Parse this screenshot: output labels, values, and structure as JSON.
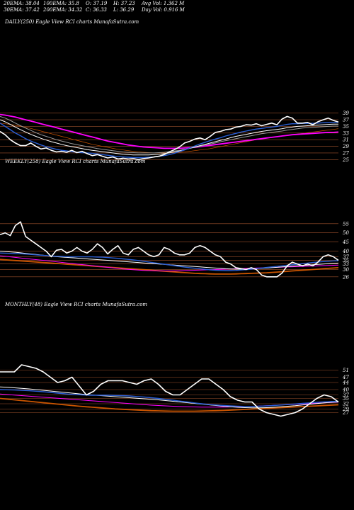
{
  "header": {
    "row1": [
      "20EMA: 38.04",
      "100EMA: 35.8",
      "O: 37.19",
      "H: 37.23",
      "Avg Vol: 1.362  M"
    ],
    "row2": [
      "30EMA: 37.42",
      "200EMA: 34.32",
      "C: 36.33",
      "L: 36.29",
      "Day Vol: 0.916  M"
    ]
  },
  "chart_data": [
    {
      "type": "line",
      "title": "DAILY(250) Eagle   View  RCI charts MunafaSutra.com",
      "ylim": [
        24,
        40
      ],
      "yticks": [
        39,
        37,
        35,
        33,
        31,
        29,
        27,
        25
      ],
      "series": [
        {
          "color": "#ffffff",
          "values": [
            33.5,
            32.5,
            31,
            30,
            29.2,
            29.2,
            30,
            29,
            28.2,
            28.5,
            27.8,
            27.3,
            27.5,
            27.2,
            27.8,
            27.1,
            27.5,
            26.8,
            26.2,
            26.5,
            26,
            25.5,
            25.8,
            25.2,
            25.4,
            25.2,
            25.3,
            25,
            25.3,
            25.5,
            25.8,
            26,
            26.5,
            27.3,
            28,
            28.8,
            30,
            30.5,
            31.2,
            31.5,
            31,
            32,
            33.2,
            33.5,
            34,
            34.2,
            34.8,
            35,
            35.5,
            35.4,
            35.8,
            35.2,
            35.6,
            36,
            35.5,
            37.2,
            38,
            37.5,
            36,
            36,
            36.2,
            35.5,
            36.4,
            37,
            37.5,
            36.8,
            36.3
          ]
        },
        {
          "color": "#2a5fd6",
          "values": [
            36,
            35,
            34,
            33,
            32.2,
            31.3,
            30.6,
            30,
            29.4,
            28.9,
            28.5,
            28.1,
            27.8,
            27.6,
            27.4,
            27.2,
            27.1,
            27,
            26.9,
            26.7,
            26.5,
            26.3,
            26.1,
            25.9,
            25.8,
            25.7,
            25.6,
            25.6,
            25.6,
            25.7,
            25.8,
            26,
            26.2,
            26.5,
            26.9,
            27.4,
            27.9,
            28.5,
            29.1,
            29.7,
            30.2,
            30.7,
            31.2,
            31.6,
            32.1,
            32.5,
            32.9,
            33.3,
            33.6,
            33.9,
            34.2,
            34.4,
            34.6,
            34.8,
            35,
            35.3,
            35.6,
            35.8,
            35.8,
            35.9,
            35.9,
            35.9,
            36,
            36.1,
            36.2,
            36.2,
            36.2
          ]
        },
        {
          "color": "#ffffff",
          "values": [
            37,
            36.4,
            35.6,
            34.8,
            34,
            33.3,
            32.6,
            32,
            31.4,
            30.9,
            30.4,
            30,
            29.6,
            29.2,
            28.9,
            28.6,
            28.3,
            28,
            27.8,
            27.6,
            27.4,
            27.2,
            27,
            26.8,
            26.6,
            26.5,
            26.4,
            26.4,
            26.4,
            26.4,
            26.5,
            26.6,
            26.8,
            27,
            27.3,
            27.6,
            28,
            28.4,
            28.8,
            29.2,
            29.6,
            30,
            30.4,
            30.8,
            31.2,
            31.6,
            32,
            32.3,
            32.6,
            32.9,
            33.2,
            33.5,
            33.7,
            33.9,
            34.1,
            34.3,
            34.6,
            34.8,
            35,
            35.1,
            35.2,
            35.3,
            35.4,
            35.5,
            35.6,
            35.7,
            35.7
          ]
        },
        {
          "color": "#999999",
          "values": [
            38,
            37.5,
            36.8,
            36,
            35.2,
            34.5,
            33.8,
            33.1,
            32.5,
            32,
            31.5,
            31,
            30.6,
            30.2,
            29.8,
            29.5,
            29.2,
            28.9,
            28.6,
            28.3,
            28.1,
            27.9,
            27.7,
            27.5,
            27.3,
            27.2,
            27.1,
            27,
            27,
            27,
            27,
            27.1,
            27.2,
            27.4,
            27.6,
            27.8,
            28.1,
            28.4,
            28.7,
            29,
            29.4,
            29.7,
            30,
            30.4,
            30.7,
            31,
            31.3,
            31.6,
            31.9,
            32.2,
            32.5,
            32.8,
            33,
            33.2,
            33.4,
            33.6,
            33.9,
            34.1,
            34.3,
            34.5,
            34.6,
            34.7,
            34.8,
            34.9,
            35,
            35.1,
            35.1
          ]
        },
        {
          "color": "#ff00ff",
          "values": [
            38.6,
            38.4,
            38.1,
            37.8,
            37.4,
            37,
            36.6,
            36.2,
            35.8,
            35.4,
            35,
            34.6,
            34.2,
            33.8,
            33.4,
            33,
            32.6,
            32.2,
            31.8,
            31.4,
            31,
            30.6,
            30.3,
            30,
            29.7,
            29.4,
            29.2,
            29,
            28.8,
            28.7,
            28.6,
            28.5,
            28.4,
            28.4,
            28.4,
            28.4,
            28.5,
            28.6,
            28.7,
            28.9,
            29.1,
            29.3,
            29.5,
            29.7,
            29.9,
            30.1,
            30.3,
            30.5,
            30.7,
            30.9,
            31.1,
            31.3,
            31.5,
            31.7,
            31.9,
            32.1,
            32.3,
            32.5,
            32.6,
            32.7,
            32.8,
            32.9,
            33,
            33.1,
            33.2,
            33.2,
            33.3
          ]
        },
        {
          "color": "#cc5500",
          "values": [
            36,
            35.8,
            35.6,
            35.3,
            35,
            34.7,
            34.4,
            34,
            33.6,
            33.2,
            32.8,
            32.4,
            32,
            31.6,
            31.2,
            30.8,
            30.4,
            30,
            29.6,
            29.3,
            29,
            28.7,
            28.4,
            28.1,
            27.9,
            27.7,
            27.5,
            27.3,
            27.2,
            27.1,
            27,
            27,
            27,
            27,
            27.1,
            27.2,
            27.3,
            27.5,
            27.7,
            27.9,
            28.1,
            28.3,
            28.6,
            28.9,
            29.2,
            29.5,
            29.8,
            30.1,
            30.4,
            30.7,
            31,
            31.3,
            31.5,
            31.7,
            31.9,
            32.1,
            32.3,
            32.5,
            32.7,
            32.9,
            33.1,
            33.3,
            33.5,
            33.7,
            33.9,
            34.1,
            34.3
          ]
        }
      ]
    },
    {
      "type": "line",
      "title": "WEEKLY(258) Eagle   View  RCI charts MunafaSutra.com",
      "ylim": [
        24,
        58
      ],
      "yticks": [
        55,
        50,
        45,
        40,
        37,
        35,
        33,
        30,
        26
      ],
      "series": [
        {
          "color": "#ffffff",
          "values": [
            49,
            50,
            48.5,
            54,
            56,
            48,
            46,
            44,
            42,
            40,
            37,
            40.5,
            41,
            39,
            40,
            42,
            40,
            39,
            41,
            44,
            42,
            38.5,
            41,
            43,
            39,
            38,
            41,
            42,
            40,
            38,
            37,
            38,
            42,
            41,
            39,
            38,
            38,
            39,
            42,
            43,
            42,
            40,
            38,
            37,
            34,
            33,
            31,
            30.5,
            30,
            31,
            30,
            27,
            26,
            26,
            26,
            28,
            32,
            34,
            33,
            32,
            33,
            32,
            34,
            37,
            38,
            37,
            35
          ]
        },
        {
          "color": "#2a5fd6",
          "values": [
            39,
            38.9,
            38.8,
            38.7,
            38.6,
            38.4,
            38.2,
            38,
            37.8,
            37.6,
            37.4,
            37.2,
            37.1,
            37,
            36.9,
            36.9,
            36.9,
            36.9,
            36.9,
            36.8,
            36.7,
            36.5,
            36.3,
            36.1,
            35.8,
            35.5,
            35.2,
            34.9,
            34.5,
            34.1,
            33.7,
            33.3,
            32.9,
            32.5,
            32.1,
            31.7,
            31.3,
            31,
            30.7,
            30.4,
            30.1,
            29.8,
            29.6,
            29.5,
            29.4,
            29.4,
            29.5,
            29.7,
            29.9,
            30.2,
            30.5,
            30.8,
            31.1,
            31.4,
            31.7,
            32,
            32.3,
            32.6,
            32.9,
            33.2,
            33.5,
            33.8,
            34.1,
            34.3,
            34.5,
            34.7,
            34.8
          ]
        },
        {
          "color": "#ffffff",
          "values": [
            40,
            39.8,
            39.6,
            39.4,
            39.1,
            38.8,
            38.5,
            38.2,
            37.9,
            37.6,
            37.3,
            37,
            36.8,
            36.6,
            36.4,
            36.2,
            36,
            35.8,
            35.6,
            35.4,
            35.2,
            35,
            34.8,
            34.6,
            34.4,
            34.2,
            34,
            33.8,
            33.6,
            33.4,
            33.2,
            33,
            32.8,
            32.6,
            32.4,
            32.2,
            32,
            31.8,
            31.6,
            31.4,
            31.2,
            31,
            30.8,
            30.6,
            30.4,
            30.3,
            30.2,
            30.2,
            30.2,
            30.3,
            30.4,
            30.6,
            30.8,
            31,
            31.2,
            31.4,
            31.6,
            31.8,
            32,
            32.2,
            32.4,
            32.6,
            32.8,
            33,
            33.2,
            33.4,
            33.5
          ]
        },
        {
          "color": "#ff00ff",
          "values": [
            37.5,
            37.2,
            36.9,
            36.6,
            36.3,
            36,
            35.7,
            35.4,
            35.1,
            34.8,
            34.5,
            34.2,
            33.9,
            33.6,
            33.3,
            33,
            32.7,
            32.4,
            32.1,
            31.8,
            31.5,
            31.2,
            30.9,
            30.6,
            30.3,
            30.1,
            29.9,
            29.7,
            29.5,
            29.4,
            29.3,
            29.2,
            29.2,
            29.2,
            29.2,
            29.3,
            29.4,
            29.5,
            29.6,
            29.7,
            29.8,
            29.9,
            30,
            30.1,
            30.2,
            30.3,
            30.4,
            30.5,
            30.6,
            30.7,
            30.8,
            30.9,
            31,
            31.1,
            31.2,
            31.3,
            31.4,
            31.5,
            31.6,
            31.7,
            31.8,
            31.9,
            32,
            32.1,
            32.2,
            32.3,
            32.4
          ]
        },
        {
          "color": "#cc5500",
          "values": [
            35.5,
            35.3,
            35.1,
            34.9,
            34.7,
            34.5,
            34.3,
            34.1,
            33.9,
            33.7,
            33.5,
            33.3,
            33.1,
            32.9,
            32.7,
            32.5,
            32.3,
            32.1,
            31.9,
            31.7,
            31.5,
            31.3,
            31.1,
            30.9,
            30.7,
            30.5,
            30.3,
            30.1,
            29.9,
            29.7,
            29.5,
            29.3,
            29.1,
            28.9,
            28.7,
            28.5,
            28.3,
            28.1,
            27.9,
            27.8,
            27.7,
            27.6,
            27.5,
            27.5,
            27.5,
            27.5,
            27.6,
            27.7,
            27.8,
            27.9,
            28,
            28.1,
            28.2,
            28.4,
            28.6,
            28.8,
            29,
            29.2,
            29.4,
            29.6,
            29.8,
            30,
            30.2,
            30.4,
            30.6,
            30.8,
            31
          ]
        }
      ]
    },
    {
      "type": "line",
      "title": "MONTHLY(48) Eagle   View  RCI charts MunafaSutra.com",
      "ylim": [
        20,
        60
      ],
      "yticks": [
        51,
        47,
        44,
        40,
        37,
        35,
        32,
        29,
        27
      ],
      "series": [
        {
          "color": "#ffffff",
          "values": [
            50,
            50,
            50,
            54,
            53,
            52,
            50,
            47,
            44,
            45,
            47,
            42,
            37,
            39,
            43,
            45,
            45,
            45,
            44,
            43,
            45,
            46,
            43,
            39,
            37,
            37,
            40,
            43,
            46,
            46,
            43,
            40,
            36,
            34,
            33,
            33,
            29,
            27,
            26,
            25,
            26,
            27,
            29,
            32,
            35,
            37,
            36,
            33
          ]
        },
        {
          "color": "#2a5fd6",
          "values": [
            40,
            39.9,
            39.8,
            39.6,
            39.4,
            39.1,
            38.8,
            38.4,
            38,
            37.6,
            37.3,
            37.1,
            36.9,
            36.8,
            36.8,
            36.8,
            36.7,
            36.6,
            36.4,
            36.1,
            35.8,
            35.4,
            35,
            34.5,
            34,
            33.5,
            33,
            32.5,
            32,
            31.6,
            31.3,
            31,
            30.8,
            30.6,
            30.5,
            30.5,
            30.6,
            30.8,
            31,
            31.3,
            31.6,
            31.9,
            32.2,
            32.5,
            32.8,
            33.1,
            33.3,
            33.4
          ]
        },
        {
          "color": "#ffffff",
          "values": [
            41.5,
            41.3,
            41,
            40.7,
            40.4,
            40,
            39.6,
            39.2,
            38.8,
            38.4,
            38,
            37.6,
            37.2,
            36.9,
            36.6,
            36.3,
            36,
            35.7,
            35.4,
            35.1,
            34.8,
            34.5,
            34.2,
            33.8,
            33.4,
            33,
            32.6,
            32.2,
            31.8,
            31.4,
            31,
            30.6,
            30.3,
            30,
            29.8,
            29.7,
            29.7,
            29.8,
            30,
            30.3,
            30.6,
            30.9,
            31.3,
            31.7,
            32.1,
            32.5,
            32.8,
            33
          ]
        },
        {
          "color": "#ff00ff",
          "values": [
            37.5,
            37.2,
            36.9,
            36.6,
            36.3,
            36,
            35.7,
            35.4,
            35.1,
            34.8,
            34.5,
            34.2,
            33.9,
            33.6,
            33.3,
            33,
            32.7,
            32.4,
            32.1,
            31.8,
            31.5,
            31.2,
            31,
            30.8,
            30.6,
            30.4,
            30.3,
            30.2,
            30.1,
            30.1,
            30.1,
            30.1,
            30.2,
            30.3,
            30.4,
            30.5,
            30.7,
            30.9,
            31.1,
            31.3,
            31.5,
            31.7,
            31.9,
            32.1,
            32.3,
            32.5,
            32.7,
            32.9
          ]
        },
        {
          "color": "#cc5500",
          "values": [
            35,
            34.6,
            34.2,
            33.8,
            33.4,
            33,
            32.6,
            32.2,
            31.8,
            31.4,
            31,
            30.6,
            30.3,
            30,
            29.7,
            29.4,
            29.1,
            28.9,
            28.7,
            28.5,
            28.3,
            28.1,
            28,
            27.9,
            27.8,
            27.8,
            27.8,
            27.8,
            27.9,
            28,
            28.1,
            28.2,
            28.4,
            28.6,
            28.8,
            29,
            29.2,
            29.4,
            29.6,
            29.8,
            30,
            30.2,
            30.4,
            30.6,
            30.8,
            31,
            31.2,
            31.4
          ]
        }
      ]
    }
  ]
}
